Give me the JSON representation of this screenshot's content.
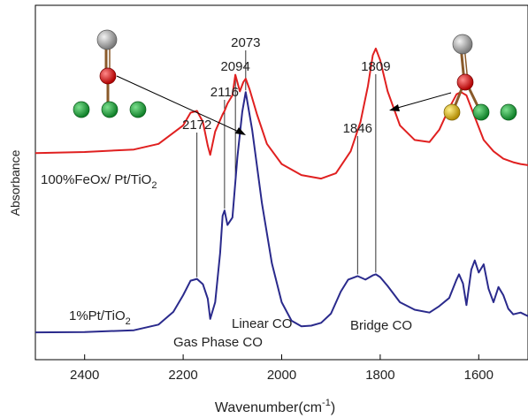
{
  "chart_data": {
    "type": "line",
    "xlabel": "Wavenumber(cm",
    "xlabel_sup": "-1",
    "xlabel_end": ")",
    "ylabel": "Absorbance",
    "xlim": [
      2500,
      1500
    ],
    "x_reversed": true,
    "ylim": [
      0,
      100
    ],
    "y_ticks_shown": false,
    "grid": false,
    "x_ticks": [
      2400,
      2200,
      2000,
      1800,
      1600
    ],
    "x_tick_labels": [
      "2400",
      "2200",
      "2000",
      "1800",
      "1600"
    ],
    "series": [
      {
        "name": "100%FeOx/ Pt/TiO",
        "name_sub": "2",
        "color": "#e02020",
        "x": [
          2500,
          2400,
          2300,
          2250,
          2200,
          2185,
          2172,
          2160,
          2150,
          2145,
          2135,
          2120,
          2116,
          2110,
          2100,
          2094,
          2085,
          2078,
          2073,
          2065,
          2050,
          2030,
          2000,
          1960,
          1920,
          1890,
          1860,
          1840,
          1825,
          1815,
          1809,
          1800,
          1785,
          1760,
          1730,
          1700,
          1680,
          1660,
          1645,
          1636,
          1625,
          1610,
          1590,
          1570,
          1550,
          1530,
          1515,
          1500
        ],
        "y": [
          58.3,
          58.6,
          59.3,
          60.9,
          66.1,
          69.7,
          70.2,
          67.1,
          60.4,
          57.8,
          64.4,
          69.2,
          70.2,
          72.3,
          74.6,
          80.4,
          75.7,
          78.3,
          79.3,
          76.2,
          69.2,
          60.9,
          55.2,
          52.1,
          51.1,
          52.6,
          58.8,
          67.1,
          77.2,
          85.9,
          87.8,
          84.5,
          75.7,
          66.1,
          62.0,
          61.4,
          64.9,
          71.0,
          74.9,
          75.5,
          74.6,
          69.2,
          62.0,
          58.8,
          56.7,
          55.7,
          55.2,
          54.9
        ]
      },
      {
        "name": "1%Pt/TiO",
        "name_sub": "2",
        "color": "#2a2a8c",
        "x": [
          2500,
          2400,
          2300,
          2250,
          2220,
          2200,
          2185,
          2172,
          2160,
          2150,
          2145,
          2135,
          2125,
          2120,
          2116,
          2110,
          2100,
          2090,
          2080,
          2073,
          2060,
          2040,
          2020,
          2000,
          1980,
          1960,
          1940,
          1920,
          1900,
          1880,
          1865,
          1846,
          1830,
          1815,
          1809,
          1800,
          1785,
          1760,
          1730,
          1700,
          1680,
          1660,
          1645,
          1640,
          1632,
          1625,
          1615,
          1608,
          1600,
          1590,
          1580,
          1570,
          1560,
          1550,
          1540,
          1530,
          1515,
          1500
        ],
        "y": [
          7.7,
          7.8,
          8.3,
          9.9,
          13.5,
          18.2,
          22.3,
          22.8,
          21.3,
          17.2,
          11.5,
          16.2,
          30.1,
          40.6,
          42.1,
          38.0,
          40.1,
          57.1,
          69.9,
          75.5,
          64.9,
          44.1,
          27.2,
          16.2,
          11.0,
          9.4,
          9.6,
          10.4,
          13.0,
          19.2,
          22.6,
          23.6,
          22.6,
          23.8,
          24.1,
          23.3,
          20.8,
          16.2,
          14.1,
          13.3,
          15.1,
          17.4,
          22.6,
          24.1,
          21.5,
          15.4,
          25.4,
          28.0,
          24.6,
          26.9,
          20.0,
          16.2,
          20.5,
          18.2,
          14.4,
          12.8,
          13.3,
          12.3
        ]
      }
    ],
    "peak_labels": [
      {
        "text": "2172",
        "x": 2172
      },
      {
        "text": "2116",
        "x": 2116
      },
      {
        "text": "2094",
        "x": 2094
      },
      {
        "text": "2073",
        "x": 2073
      },
      {
        "text": "1846",
        "x": 1846
      },
      {
        "text": "1809",
        "x": 1809
      }
    ],
    "annotations": [
      {
        "text": "Linear CO"
      },
      {
        "text": "Gas Phase CO"
      },
      {
        "text": "Bridge CO"
      }
    ],
    "molecule_colors": {
      "top_atom": "#9a9a9a",
      "middle_atom": "#d01515",
      "surface_atom": "#1faa3a",
      "special_atom": "#d4b21a",
      "bond": "#8a5a2a"
    }
  }
}
